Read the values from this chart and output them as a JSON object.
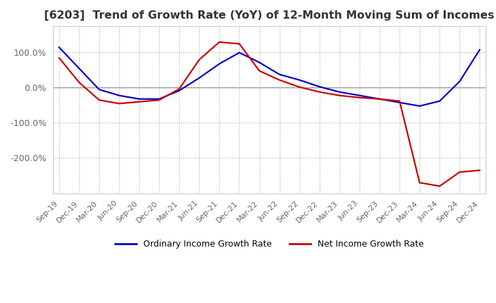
{
  "title": "[6203]  Trend of Growth Rate (YoY) of 12-Month Moving Sum of Incomes",
  "title_fontsize": 11.5,
  "legend_labels": [
    "Ordinary Income Growth Rate",
    "Net Income Growth Rate"
  ],
  "legend_colors": [
    "#0000CC",
    "#CC0000"
  ],
  "ylim": [
    -300,
    175
  ],
  "yticks": [
    100.0,
    0.0,
    -100.0,
    -200.0
  ],
  "x_labels": [
    "Sep-19",
    "Dec-19",
    "Mar-20",
    "Jun-20",
    "Sep-20",
    "Dec-20",
    "Mar-21",
    "Jun-21",
    "Sep-21",
    "Dec-21",
    "Mar-22",
    "Jun-22",
    "Sep-22",
    "Dec-22",
    "Mar-23",
    "Jun-23",
    "Sep-23",
    "Dec-23",
    "Mar-24",
    "Jun-24",
    "Sep-24",
    "Dec-24"
  ],
  "ordinary_income": [
    115,
    55,
    -5,
    -22,
    -32,
    -32,
    -8,
    28,
    68,
    100,
    72,
    38,
    22,
    3,
    -12,
    -22,
    -32,
    -42,
    -52,
    -38,
    18,
    108
  ],
  "net_income": [
    85,
    15,
    -35,
    -45,
    -40,
    -35,
    -3,
    80,
    130,
    125,
    48,
    22,
    2,
    -12,
    -22,
    -28,
    -32,
    -38,
    -270,
    -280,
    -240,
    -235
  ],
  "grid_color": "#aaaaaa",
  "bg_color": "#ffffff",
  "line_width": 1.6,
  "zero_line_color": "#888888",
  "tick_color": "#666666",
  "title_color": "#333333"
}
